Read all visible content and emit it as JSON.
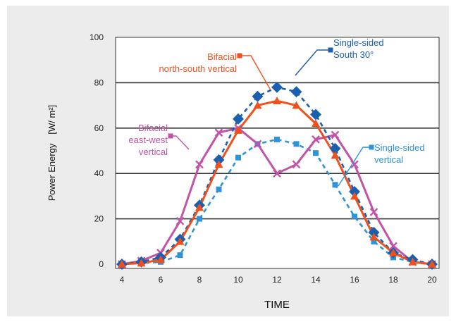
{
  "chart_data": {
    "type": "line",
    "xlabel": "TIME",
    "ylabel": "Power Energy　[W/ m²]",
    "xlim": [
      4,
      20
    ],
    "ylim": [
      0,
      100
    ],
    "xticks": [
      4,
      6,
      8,
      10,
      12,
      14,
      16,
      18,
      20
    ],
    "yticks": [
      0,
      20,
      40,
      60,
      80,
      100
    ],
    "grid": "horizontal",
    "x": [
      4,
      5,
      6,
      7,
      8,
      9,
      10,
      11,
      12,
      13,
      14,
      15,
      16,
      17,
      18,
      19,
      20
    ],
    "series": [
      {
        "name": "Single-sided South 30°",
        "label_lines": [
          "Single-sided",
          "South 30°"
        ],
        "color": "#1b5fb0",
        "dashed": true,
        "marker": "diamond",
        "values": [
          0,
          1,
          3,
          11,
          26,
          46,
          64,
          74,
          78,
          76,
          66,
          51,
          32,
          14,
          5,
          2,
          0
        ]
      },
      {
        "name": "Bifacial north-south vertical",
        "label_lines": [
          "Bifacial",
          "north-south vertical"
        ],
        "color": "#f0501e",
        "dashed": false,
        "marker": "triangle",
        "values": [
          0,
          0.5,
          2,
          10,
          25,
          44,
          59,
          70,
          72,
          70,
          62,
          48,
          30,
          12,
          5,
          1,
          0
        ]
      },
      {
        "name": "Bifacial east-west vertical",
        "label_lines": [
          "Bifacial",
          "east-west",
          "vertical"
        ],
        "color": "#c253a6",
        "dashed": false,
        "marker": "x",
        "values": [
          0,
          1.5,
          5,
          19,
          44,
          58,
          60,
          53,
          40,
          44,
          55,
          57,
          44,
          23,
          8,
          1,
          0
        ]
      },
      {
        "name": "Single-sided vertical",
        "label_lines": [
          "Single-sided",
          "vertical"
        ],
        "color": "#2e93d8",
        "dashed": true,
        "marker": "square",
        "values": [
          0,
          0.5,
          1,
          4,
          20,
          33,
          47,
          53,
          55,
          53,
          49,
          35,
          21,
          10,
          3,
          1,
          0
        ]
      }
    ]
  }
}
